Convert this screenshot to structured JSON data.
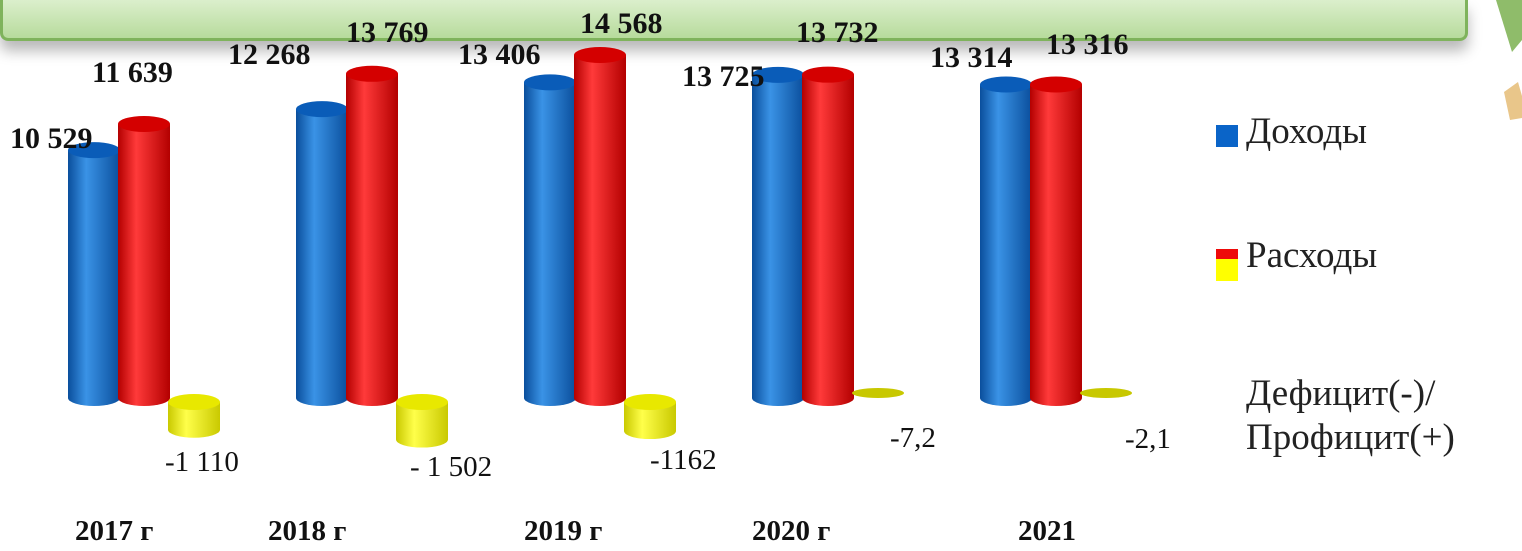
{
  "chart_data": {
    "type": "bar",
    "categories": [
      "2017 г",
      "2018 г",
      "2019 г",
      "2020 г",
      "2021"
    ],
    "series": [
      {
        "name": "Доходы",
        "color": "#0a64c8",
        "values": [
          10529,
          12268,
          13406,
          13725,
          13314
        ],
        "labels": [
          "10 529",
          "12 268",
          "13 406",
          "13 725",
          "13 314"
        ]
      },
      {
        "name": "Расходы",
        "color": "#ee0a0a",
        "values": [
          11639,
          13769,
          14568,
          13732,
          13316
        ],
        "labels": [
          "11 639",
          "13 769",
          "14 568",
          "13 732",
          "13 316"
        ]
      },
      {
        "name": "Дефицит(-)/ Профицит(+)",
        "color": "#ffff00",
        "values": [
          -1110,
          -1502,
          -1162,
          -7.2,
          -2.1
        ],
        "labels": [
          "-1 110",
          "- 1 502",
          "-1162",
          "-7,2",
          "-2,1"
        ]
      }
    ],
    "legend": {
      "position": "right",
      "items": [
        "Доходы",
        "Расходы",
        "Дефицит(-)/ Профицит(+)"
      ],
      "lines": [
        [
          "Доходы"
        ],
        [
          "Расходы"
        ],
        [
          "Дефицит(-)/",
          "Профицит(+)"
        ]
      ]
    }
  }
}
